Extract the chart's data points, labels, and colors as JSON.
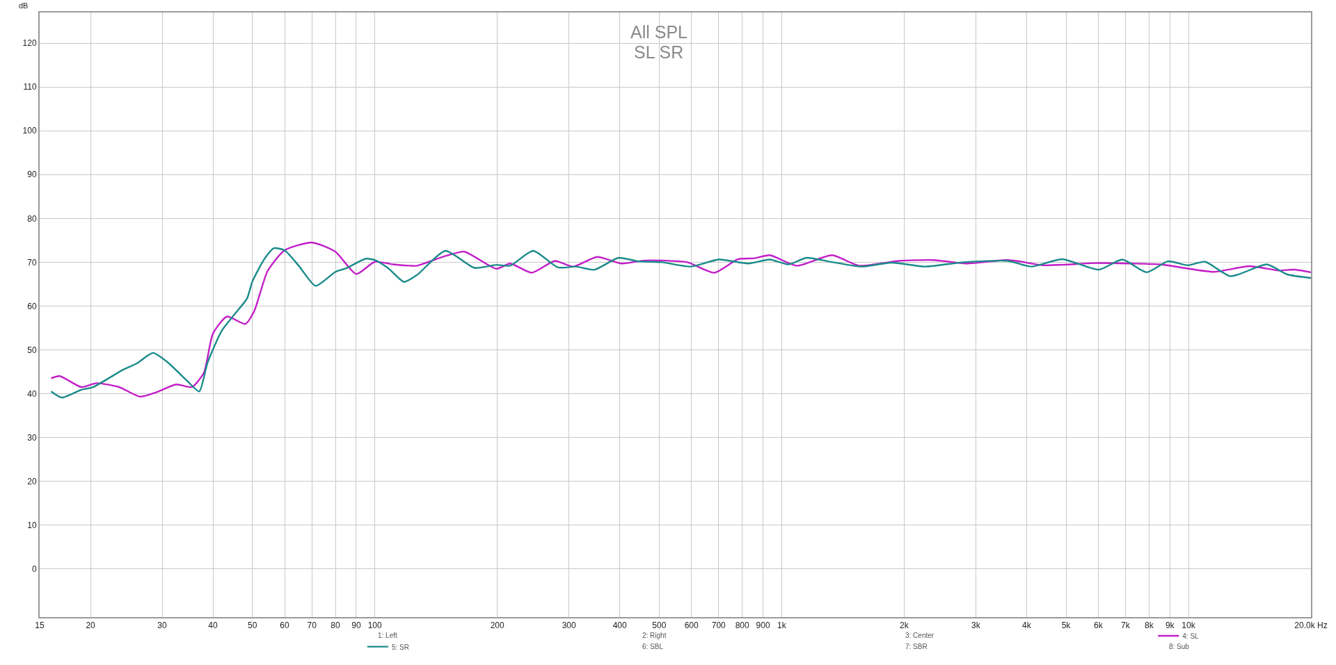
{
  "chart_data": {
    "type": "line",
    "title": "All SPL",
    "subtitle": "SL SR",
    "ylabel": "dB",
    "log": "x",
    "grid": true,
    "legend": "bottom",
    "marker": "none",
    "line_style": "solid",
    "xlim": [
      15,
      20000
    ],
    "ylim": [
      -11,
      127
    ],
    "xticks": [
      15,
      20,
      30,
      40,
      50,
      60,
      70,
      80,
      90,
      100,
      200,
      300,
      400,
      500,
      600,
      700,
      800,
      900,
      {
        "value": 1000,
        "label": "1k"
      },
      {
        "value": 2000,
        "label": "2k"
      },
      {
        "value": 3000,
        "label": "3k"
      },
      {
        "value": 4000,
        "label": "4k"
      },
      {
        "value": 5000,
        "label": "5k"
      },
      {
        "value": 6000,
        "label": "6k"
      },
      {
        "value": 7000,
        "label": "7k"
      },
      {
        "value": 8000,
        "label": "8k"
      },
      {
        "value": 9000,
        "label": "9k"
      },
      {
        "value": 10000,
        "label": "10k"
      },
      {
        "value": 20000,
        "label": "20.0k Hz"
      }
    ],
    "yticks": [
      0,
      10,
      20,
      30,
      40,
      50,
      60,
      70,
      80,
      90,
      100,
      110,
      120
    ],
    "annotations": [
      "1: Left",
      "2: Right",
      "3: Center",
      "6: SBL",
      "7: SBR",
      "8: Sub"
    ],
    "series": [
      {
        "name": "4: SL",
        "color": "#c21ec8",
        "x": [
          16,
          16.8,
          19,
          20.7,
          23.5,
          26.5,
          29,
          32.5,
          35.5,
          38,
          40,
          43.3,
          48,
          50.5,
          54.5,
          60,
          70,
          80,
          90,
          100,
          111,
          122,
          127,
          150,
          166,
          199,
          215,
          243,
          277,
          307,
          352,
          404,
          462,
          586,
          683,
          782,
          857,
          935,
          1090,
          1330,
          1550,
          1940,
          2360,
          2850,
          3540,
          3780,
          4390,
          5900,
          7230,
          8530,
          11560,
          14100,
          16680,
          18150,
          20000
        ],
        "values": [
          43.5,
          44,
          41.5,
          42.4,
          41.5,
          39.3,
          40.3,
          42.1,
          41.5,
          44.8,
          53.7,
          57.6,
          55.9,
          58.8,
          68,
          72.7,
          74.5,
          72.4,
          67.3,
          70.1,
          69.5,
          69.2,
          69.2,
          71.5,
          72.4,
          68.5,
          69.7,
          67.6,
          70.3,
          69,
          71.2,
          69.7,
          70.4,
          70,
          67.6,
          70.7,
          70.9,
          71.6,
          69.2,
          71.6,
          69.2,
          70.3,
          70.5,
          69.7,
          70.5,
          70.3,
          69.3,
          69.8,
          69.7,
          69.5,
          67.8,
          69.1,
          68.1,
          68.3,
          67.7
        ]
      },
      {
        "name": "5: SR",
        "color": "#1a8a8a",
        "x": [
          16,
          17,
          19,
          20.3,
          24,
          26,
          28.5,
          31,
          34.5,
          37,
          38.8,
          42,
          45,
          48.5,
          50,
          53.5,
          56.5,
          60,
          65,
          71.5,
          80,
          85,
          95,
          100,
          108,
          118,
          127,
          149,
          176,
          199,
          215,
          245,
          282,
          312,
          347,
          397,
          444,
          508,
          597,
          701,
          829,
          934,
          1040,
          1150,
          1300,
          1570,
          1866,
          2254,
          2802,
          3600,
          4110,
          4890,
          6020,
          6880,
          7890,
          8900,
          9960,
          10990,
          12700,
          15570,
          17500,
          20000
        ],
        "values": [
          40.5,
          39.1,
          40.9,
          41.5,
          45.4,
          46.9,
          49.3,
          47.1,
          43,
          40.5,
          47.1,
          54.3,
          57.9,
          61.7,
          65.6,
          70.7,
          73.2,
          72.7,
          69.2,
          64.6,
          67.8,
          68.6,
          70.8,
          70.5,
          68.6,
          65.5,
          67.1,
          72.6,
          68.7,
          69.4,
          69.2,
          72.6,
          68.8,
          69,
          68.3,
          71,
          70.2,
          70,
          69,
          70.6,
          69.7,
          70.6,
          69.5,
          71,
          70.2,
          69,
          69.9,
          69,
          70,
          70.3,
          69,
          70.7,
          68.3,
          70.6,
          67.7,
          70.2,
          69.3,
          70.1,
          66.8,
          69.5,
          67.2,
          66.4
        ]
      }
    ]
  }
}
